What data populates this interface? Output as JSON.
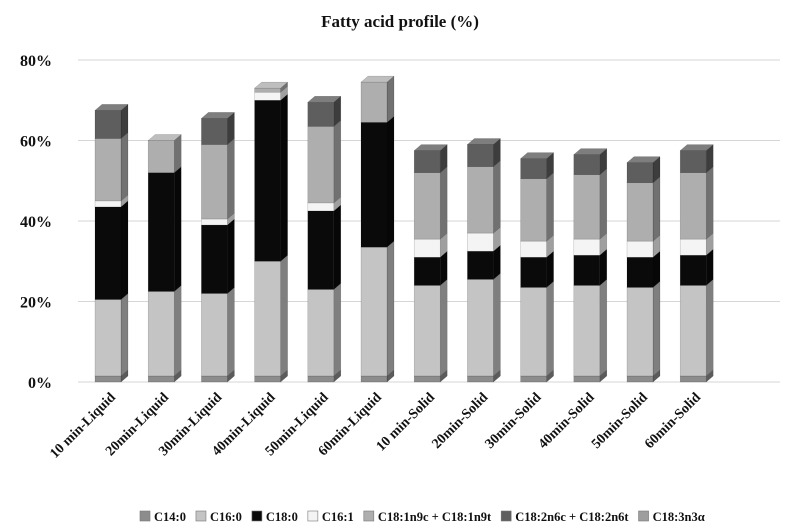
{
  "chart_data": {
    "type": "bar",
    "stacked": true,
    "style": "3d-column",
    "title": "Fatty acid profile (%)",
    "xlabel": "",
    "ylabel": "",
    "ylim": [
      0,
      80
    ],
    "yticks": [
      "0%",
      "20%",
      "40%",
      "60%",
      "80%"
    ],
    "grid": true,
    "legend_position": "bottom",
    "categories": [
      "10 min-Liquid",
      "20min-Liquid",
      "30min-Liquid",
      "40min-Liquid",
      "50min-Liquid",
      "60min-Liquid",
      "10 min-Solid",
      "20min-Solid",
      "30min-Solid",
      "40min-Solid",
      "50min-Solid",
      "60min-Solid"
    ],
    "series": [
      {
        "name": "C14:0",
        "color": "#8c8c8c",
        "values": [
          1.5,
          1.5,
          1.5,
          1.5,
          1.5,
          1.5,
          1.5,
          1.5,
          1.5,
          1.5,
          1.5,
          1.5
        ]
      },
      {
        "name": "C16:0",
        "color": "#c4c4c4",
        "values": [
          19,
          21,
          20.5,
          28.5,
          21.5,
          32,
          22.5,
          24,
          22,
          22.5,
          22,
          22.5
        ]
      },
      {
        "name": "C18:0",
        "color": "#0a0a0a",
        "values": [
          23,
          29.5,
          17,
          40,
          19.5,
          31,
          7,
          7,
          7.5,
          7.5,
          7.5,
          7.5
        ]
      },
      {
        "name": "C16:1",
        "color": "#f4f4f4",
        "values": [
          1.5,
          0,
          1.5,
          2,
          2,
          0,
          4.5,
          4.5,
          4,
          4,
          4,
          4
        ]
      },
      {
        "name": "C18:1n9c + C18:1n9t",
        "color": "#aeaeae",
        "values": [
          15.5,
          8,
          18.5,
          1,
          19,
          10,
          16.5,
          16.5,
          15.5,
          16,
          14.5,
          16.5
        ]
      },
      {
        "name": "C18:2n6c + C18:2n6t",
        "color": "#5e5e5e",
        "values": [
          7,
          0,
          6.5,
          0,
          6,
          0,
          5.5,
          5.5,
          5,
          5,
          5,
          5.5
        ]
      },
      {
        "name": "C18:3n3α",
        "color": "#9e9e9e",
        "values": [
          0,
          0,
          0,
          0,
          0,
          0,
          0,
          0,
          0,
          0,
          0,
          0
        ]
      }
    ]
  }
}
